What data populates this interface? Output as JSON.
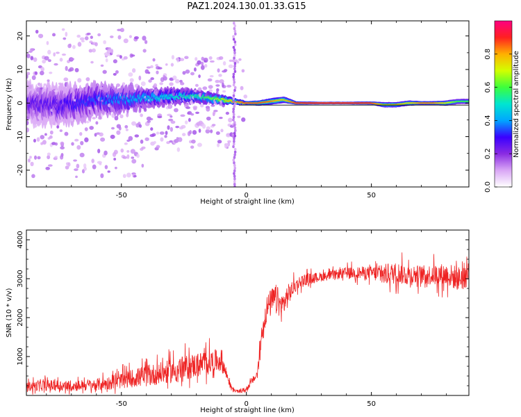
{
  "title": "PAZ1.2024.130.01.33.G15",
  "colors": {
    "snr_line": "#ee2222",
    "colormap_stops": [
      "#ffffff",
      "#d9a6f5",
      "#8a2be2",
      "#3a00ff",
      "#00a6ff",
      "#00e5d0",
      "#3cff3c",
      "#d2ff00",
      "#ffb000",
      "#ff2020",
      "#ff0080"
    ]
  },
  "chart_data": [
    {
      "type": "heatmap",
      "title": "",
      "xlabel": "Height of straight line (km)",
      "ylabel": "Frequency (Hz)",
      "xlim": [
        -88,
        89
      ],
      "ylim": [
        -25,
        24.5
      ],
      "x_ticks": [
        "-50",
        "0",
        "50"
      ],
      "x_tick_values": [
        -50,
        0,
        50
      ],
      "y_ticks": [
        "20",
        "10",
        "0",
        "-10",
        "-20"
      ],
      "y_tick_values": [
        20,
        10,
        0,
        -10,
        -20
      ],
      "colorbar": {
        "label": "Normalized spectral amplitude",
        "range": [
          0,
          1
        ],
        "ticks": [
          "0.0",
          "0.2",
          "0.4",
          "0.6",
          "0.8"
        ],
        "tick_values": [
          0.0,
          0.2,
          0.4,
          0.6,
          0.8
        ]
      },
      "ridge": {
        "x": [
          -88,
          -75,
          -60,
          -50,
          -40,
          -30,
          -20,
          -10,
          -5,
          0,
          5,
          10,
          15,
          20,
          30,
          40,
          50,
          55,
          60,
          65,
          70,
          75,
          80,
          85,
          89
        ],
        "freq": [
          0,
          -1,
          1,
          1,
          1.5,
          2,
          2,
          1,
          0.5,
          0,
          0,
          0.5,
          1,
          0,
          0,
          0,
          0,
          -0.5,
          -0.5,
          0,
          0,
          0,
          0,
          0.5,
          0.5
        ],
        "spread": [
          6,
          6,
          5,
          4,
          3,
          2.5,
          2,
          1.5,
          1,
          0.6,
          0.8,
          1,
          1,
          0.5,
          0.4,
          0.4,
          0.5,
          0.8,
          0.8,
          0.8,
          0.6,
          0.6,
          0.8,
          0.8,
          0.8
        ],
        "amplitude": [
          0.25,
          0.28,
          0.35,
          0.4,
          0.45,
          0.5,
          0.55,
          0.7,
          0.82,
          0.88,
          0.88,
          0.85,
          0.75,
          0.9,
          0.9,
          0.9,
          0.9,
          0.75,
          0.8,
          0.75,
          0.85,
          0.85,
          0.75,
          0.6,
          0.6
        ]
      }
    },
    {
      "type": "line",
      "title": "",
      "xlabel": "Height of straight line (km)",
      "ylabel": "SNR (10 * v/v)",
      "xlim": [
        -88,
        89
      ],
      "ylim": [
        0,
        4250
      ],
      "x_ticks": [
        "-50",
        "0",
        "50"
      ],
      "x_tick_values": [
        -50,
        0,
        50
      ],
      "y_ticks": [
        "4000",
        "3000",
        "2000",
        "1000"
      ],
      "y_tick_values": [
        4000,
        3000,
        2000,
        1000
      ],
      "series": [
        {
          "x": [
            -88,
            -80,
            -70,
            -60,
            -55,
            -50,
            -45,
            -40,
            -35,
            -30,
            -25,
            -20,
            -15,
            -10,
            -6,
            -4,
            -2,
            0,
            2,
            4,
            5,
            6,
            7,
            8,
            10,
            12,
            14,
            16,
            18,
            20,
            22,
            25,
            30,
            35,
            40,
            45,
            50,
            55,
            60,
            65,
            70,
            75,
            80,
            85,
            89
          ],
          "y": [
            230,
            260,
            250,
            280,
            320,
            380,
            450,
            500,
            560,
            620,
            700,
            780,
            850,
            900,
            200,
            100,
            120,
            150,
            350,
            500,
            800,
            1500,
            1900,
            2200,
            2400,
            2500,
            2250,
            2500,
            2700,
            2850,
            2950,
            3000,
            3050,
            3100,
            3150,
            3150,
            3150,
            3100,
            3150,
            3100,
            3100,
            3100,
            3100,
            3000,
            3150
          ],
          "noise": [
            150,
            180,
            180,
            200,
            220,
            250,
            300,
            350,
            350,
            380,
            400,
            400,
            400,
            350,
            60,
            50,
            60,
            80,
            100,
            150,
            250,
            350,
            400,
            450,
            450,
            450,
            450,
            400,
            300,
            200,
            200,
            180,
            150,
            150,
            180,
            200,
            220,
            350,
            350,
            350,
            300,
            350,
            380,
            400,
            450
          ]
        }
      ]
    }
  ]
}
